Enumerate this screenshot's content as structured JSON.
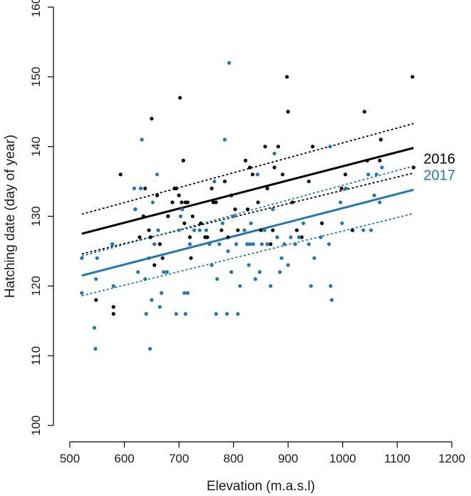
{
  "chart_data": {
    "type": "scatter",
    "xlabel": "Elevation (m.a.s.l)",
    "ylabel": "Hatching date (day of year)",
    "xlim": [
      500,
      1200
    ],
    "ylim": [
      100,
      160
    ],
    "x_ticks": [
      "500",
      "600",
      "700",
      "800",
      "900",
      "1000",
      "1100",
      "1200"
    ],
    "y_ticks": [
      "100",
      "110",
      "120",
      "130",
      "140",
      "150",
      "160"
    ],
    "grid": false,
    "legend_placement": "right, at line ends",
    "series": [
      {
        "name": "2016",
        "color": "#000000",
        "points": [
          [
            548,
            118
          ],
          [
            578,
            126
          ],
          [
            580,
            117
          ],
          [
            580,
            116
          ],
          [
            593,
            136
          ],
          [
            620,
            131
          ],
          [
            628,
            127
          ],
          [
            635,
            130
          ],
          [
            638,
            134
          ],
          [
            645,
            128
          ],
          [
            650,
            144
          ],
          [
            648,
            127
          ],
          [
            655,
            123
          ],
          [
            660,
            133
          ],
          [
            665,
            126
          ],
          [
            670,
            124
          ],
          [
            680,
            130
          ],
          [
            688,
            132
          ],
          [
            692,
            134
          ],
          [
            695,
            134
          ],
          [
            700,
            133
          ],
          [
            702,
            147
          ],
          [
            705,
            132
          ],
          [
            708,
            138
          ],
          [
            710,
            129
          ],
          [
            712,
            132
          ],
          [
            716,
            132
          ],
          [
            720,
            127
          ],
          [
            722,
            124
          ],
          [
            725,
            130
          ],
          [
            740,
            129
          ],
          [
            748,
            127
          ],
          [
            752,
            127
          ],
          [
            760,
            134
          ],
          [
            763,
            132
          ],
          [
            768,
            132
          ],
          [
            778,
            128
          ],
          [
            784,
            135
          ],
          [
            790,
            127
          ],
          [
            796,
            133
          ],
          [
            803,
            131
          ],
          [
            808,
            128
          ],
          [
            822,
            138
          ],
          [
            826,
            131
          ],
          [
            830,
            137
          ],
          [
            835,
            136
          ],
          [
            845,
            132
          ],
          [
            850,
            128
          ],
          [
            858,
            140
          ],
          [
            862,
            134
          ],
          [
            868,
            126
          ],
          [
            872,
            128
          ],
          [
            875,
            137
          ],
          [
            882,
            140
          ],
          [
            890,
            136
          ],
          [
            898,
            150
          ],
          [
            900,
            145
          ],
          [
            908,
            132
          ],
          [
            916,
            128
          ],
          [
            925,
            127
          ],
          [
            938,
            135
          ],
          [
            945,
            140
          ],
          [
            962,
            129
          ],
          [
            998,
            134
          ],
          [
            1005,
            136
          ],
          [
            1018,
            128
          ],
          [
            1040,
            145
          ],
          [
            1045,
            138
          ],
          [
            1068,
            138
          ],
          [
            1070,
            141
          ],
          [
            1128,
            150
          ],
          [
            1130,
            137
          ]
        ],
        "fit": {
          "x": [
            522,
            1130
          ],
          "y": [
            127.5,
            139.8
          ]
        },
        "ci_upper": {
          "x": [
            522,
            1130
          ],
          "y": [
            130.3,
            143.3
          ]
        },
        "ci_lower": {
          "x": [
            522,
            1130
          ],
          "y": [
            124.6,
            136.2
          ]
        }
      },
      {
        "name": "2017",
        "color": "#1f77b4",
        "points": [
          [
            522,
            124
          ],
          [
            522,
            119
          ],
          [
            545,
            114
          ],
          [
            547,
            111
          ],
          [
            548,
            121
          ],
          [
            550,
            124
          ],
          [
            578,
            126
          ],
          [
            580,
            120
          ],
          [
            618,
            134
          ],
          [
            620,
            131
          ],
          [
            625,
            122
          ],
          [
            630,
            134
          ],
          [
            632,
            141
          ],
          [
            638,
            121
          ],
          [
            640,
            116
          ],
          [
            645,
            124
          ],
          [
            647,
            111
          ],
          [
            650,
            118
          ],
          [
            652,
            132
          ],
          [
            655,
            126
          ],
          [
            660,
            136
          ],
          [
            662,
            128
          ],
          [
            665,
            117
          ],
          [
            668,
            119
          ],
          [
            672,
            122
          ],
          [
            678,
            122
          ],
          [
            695,
            116
          ],
          [
            700,
            128
          ],
          [
            703,
            130
          ],
          [
            706,
            131
          ],
          [
            710,
            119
          ],
          [
            712,
            116
          ],
          [
            716,
            119
          ],
          [
            720,
            126
          ],
          [
            728,
            128
          ],
          [
            738,
            128
          ],
          [
            750,
            128
          ],
          [
            756,
            126
          ],
          [
            760,
            123
          ],
          [
            765,
            135
          ],
          [
            768,
            116
          ],
          [
            770,
            121
          ],
          [
            774,
            126
          ],
          [
            780,
            129
          ],
          [
            784,
            141
          ],
          [
            788,
            116
          ],
          [
            790,
            125
          ],
          [
            792,
            152
          ],
          [
            796,
            122
          ],
          [
            800,
            130
          ],
          [
            805,
            126
          ],
          [
            808,
            116
          ],
          [
            812,
            120
          ],
          [
            820,
            128
          ],
          [
            825,
            126
          ],
          [
            828,
            123
          ],
          [
            830,
            126
          ],
          [
            832,
            129
          ],
          [
            836,
            126
          ],
          [
            840,
            121
          ],
          [
            844,
            136
          ],
          [
            848,
            122
          ],
          [
            852,
            126
          ],
          [
            857,
            128
          ],
          [
            862,
            126
          ],
          [
            868,
            120
          ],
          [
            872,
            131
          ],
          [
            875,
            139
          ],
          [
            880,
            127
          ],
          [
            885,
            122
          ],
          [
            888,
            124
          ],
          [
            893,
            126
          ],
          [
            900,
            123
          ],
          [
            905,
            127
          ],
          [
            913,
            126
          ],
          [
            920,
            127
          ],
          [
            928,
            129
          ],
          [
            938,
            126
          ],
          [
            942,
            120
          ],
          [
            948,
            124
          ],
          [
            960,
            127
          ],
          [
            975,
            126
          ],
          [
            977,
            140
          ],
          [
            978,
            120
          ],
          [
            980,
            118
          ],
          [
            996,
            132
          ],
          [
            999,
            129
          ],
          [
            1006,
            134
          ],
          [
            1038,
            128
          ],
          [
            1047,
            136
          ],
          [
            1052,
            128
          ],
          [
            1058,
            133
          ],
          [
            1062,
            136
          ],
          [
            1068,
            132
          ],
          [
            1072,
            137
          ]
        ],
        "fit": {
          "x": [
            522,
            1130
          ],
          "y": [
            121.5,
            133.8
          ]
        },
        "ci_upper": {
          "x": [
            522,
            1130
          ],
          "y": [
            124.3,
            137.2
          ]
        },
        "ci_lower": {
          "x": [
            522,
            1130
          ],
          "y": [
            118.6,
            130.4
          ]
        }
      }
    ]
  }
}
